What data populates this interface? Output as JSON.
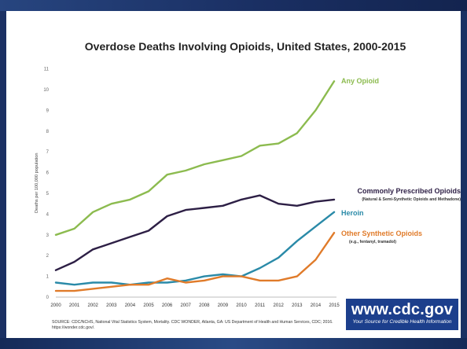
{
  "chart_data": {
    "type": "line",
    "title": "Overdose Deaths Involving Opioids, United States, 2000-2015",
    "xlabel": "",
    "ylabel": "Deaths per 100,000 population",
    "x": [
      "2000",
      "2001",
      "2002",
      "2003",
      "2004",
      "2005",
      "2006",
      "2007",
      "2008",
      "2009",
      "2010",
      "2011",
      "2012",
      "2013",
      "2014",
      "2015"
    ],
    "ylim": [
      0,
      11
    ],
    "yticks": [
      0,
      1,
      2,
      3,
      4,
      5,
      6,
      7,
      8,
      9,
      10,
      11
    ],
    "grid": false,
    "series": [
      {
        "name": "Any Opioid",
        "color": "#8cbb4f",
        "values": [
          3.0,
          3.3,
          4.1,
          4.5,
          4.7,
          5.1,
          5.9,
          6.1,
          6.4,
          6.6,
          6.8,
          7.3,
          7.4,
          7.9,
          9.0,
          10.4
        ]
      },
      {
        "name": "Commonly Prescribed Opioids",
        "sublabel": "(Natural & Semi-Synthetic Opioids and Methadone)",
        "color": "#2d1f45",
        "values": [
          1.3,
          1.7,
          2.3,
          2.6,
          2.9,
          3.2,
          3.9,
          4.2,
          4.3,
          4.4,
          4.7,
          4.9,
          4.5,
          4.4,
          4.6,
          4.7
        ]
      },
      {
        "name": "Heroin",
        "color": "#2a8aa8",
        "values": [
          0.7,
          0.6,
          0.7,
          0.7,
          0.6,
          0.7,
          0.7,
          0.8,
          1.0,
          1.1,
          1.0,
          1.4,
          1.9,
          2.7,
          3.4,
          4.1
        ]
      },
      {
        "name": "Other Synthetic Opioids",
        "sublabel": "(e.g., fentanyl, tramadol)",
        "color": "#e07b2a",
        "values": [
          0.3,
          0.3,
          0.4,
          0.5,
          0.6,
          0.6,
          0.9,
          0.7,
          0.8,
          1.0,
          1.0,
          0.8,
          0.8,
          1.0,
          1.8,
          3.1
        ]
      }
    ]
  },
  "source_note": "SOURCE: CDC/NCHS, National Vital Statistics System, Mortality. CDC WONDER, Atlanta, GA: US Department of Health and Human Services, CDC; 2016. https://wonder.cdc.gov/.",
  "cdc": {
    "url": "www.cdc.gov",
    "tagline": "Your Source for Credible Health Information"
  }
}
